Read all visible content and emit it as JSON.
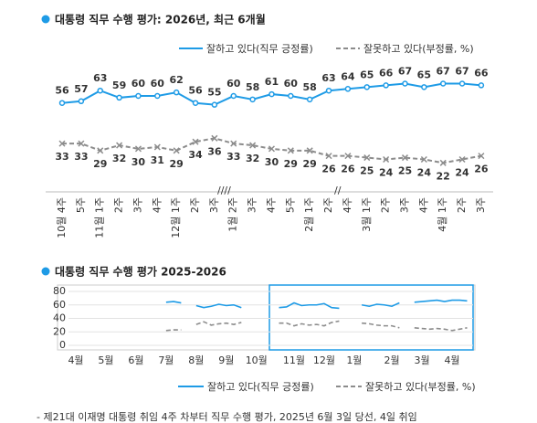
{
  "chart_data": [
    {
      "type": "line",
      "title": "대통령 직무 수행 평가: 2026년, 최근 6개월",
      "categories": [
        "10월 4주",
        "5주",
        "11월 1주",
        "2주",
        "3주",
        "4주",
        "12월 1주",
        "2주",
        "3주",
        "1월 2주",
        "3주",
        "4주",
        "5주",
        "2월 1주",
        "2주",
        "4주",
        "3월 1주",
        "2주",
        "3주",
        "4주",
        "4월 1주",
        "2주",
        "3주"
      ],
      "series": [
        {
          "name": "잘하고 있다(직무 긍정률)",
          "color": "#1e9be6",
          "values": [
            56,
            57,
            63,
            59,
            60,
            60,
            62,
            56,
            55,
            60,
            58,
            61,
            60,
            58,
            63,
            64,
            65,
            66,
            67,
            65,
            67,
            67,
            66
          ]
        },
        {
          "name": "잘못하고 있다(부정률, %)",
          "color": "#8c8c8c",
          "values": [
            33,
            33,
            29,
            32,
            30,
            31,
            29,
            34,
            36,
            33,
            32,
            30,
            29,
            29,
            26,
            26,
            25,
            24,
            25,
            24,
            22,
            24,
            26
          ]
        }
      ],
      "ylim": [
        10,
        80
      ],
      "legend": "top-right"
    },
    {
      "type": "line",
      "title": "대통령 직무 수행 평가 2025-2026",
      "categories": [
        "4월",
        null,
        null,
        null,
        "5월",
        null,
        null,
        null,
        "6월",
        null,
        null,
        null,
        "7월",
        null,
        null,
        null,
        "8월",
        null,
        null,
        null,
        "9월",
        null,
        null,
        null,
        "10월",
        null,
        null,
        null,
        null,
        "11월",
        null,
        null,
        null,
        "12월",
        null,
        null,
        null,
        "1월",
        null,
        null,
        null,
        null,
        "2월",
        null,
        null,
        null,
        "3월",
        null,
        null,
        null,
        "4월",
        null,
        null,
        null
      ],
      "series": [
        {
          "name": "잘하고 있다(직무 긍정률)",
          "color": "#1e9be6",
          "values": [
            null,
            null,
            null,
            null,
            null,
            null,
            null,
            null,
            null,
            null,
            null,
            null,
            64,
            65,
            63,
            null,
            59,
            56,
            58,
            61,
            59,
            60,
            56,
            null,
            null,
            null,
            null,
            56,
            57,
            63,
            59,
            60,
            60,
            62,
            56,
            55,
            null,
            null,
            60,
            58,
            61,
            60,
            58,
            63,
            null,
            64,
            65,
            66,
            67,
            65,
            67,
            67,
            66,
            null
          ]
        },
        {
          "name": "잘못하고 있다(부정률, %)",
          "color": "#8c8c8c",
          "values": [
            null,
            null,
            null,
            null,
            null,
            null,
            null,
            null,
            null,
            null,
            null,
            null,
            22,
            23,
            23,
            null,
            31,
            35,
            30,
            32,
            33,
            31,
            34,
            null,
            null,
            null,
            null,
            33,
            33,
            29,
            32,
            30,
            31,
            29,
            34,
            36,
            null,
            null,
            33,
            32,
            30,
            29,
            29,
            26,
            null,
            26,
            25,
            24,
            25,
            24,
            22,
            24,
            26,
            null
          ]
        }
      ],
      "ylim": [
        0,
        80
      ],
      "yticks": [
        0,
        20,
        40,
        60,
        80
      ],
      "grid": true,
      "legend": "bottom"
    }
  ],
  "note": "- 제21대 이재명 대통령 취임 4주 차부터 직무 수행 평가, 2025년 6월 3일 당선, 4일 취임"
}
